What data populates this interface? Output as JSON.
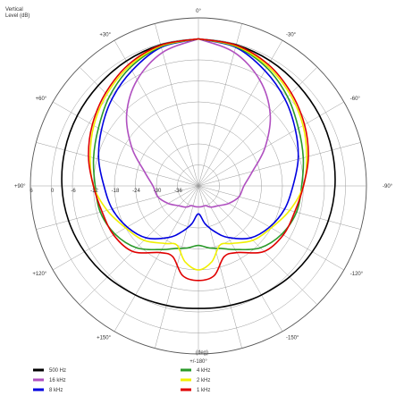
{
  "chart_data": {
    "type": "polar-line",
    "ylabel_line1": "Vertical",
    "ylabel_line2": "Level  (dB)",
    "xlabel": "(deg)",
    "r_ticks": [
      {
        "value": 6,
        "label": "6"
      },
      {
        "value": 0,
        "label": "0"
      },
      {
        "value": -6,
        "label": "-6"
      },
      {
        "value": -12,
        "label": "-12"
      },
      {
        "value": -18,
        "label": "-18"
      },
      {
        "value": -24,
        "label": "-24"
      },
      {
        "value": -30,
        "label": "-30"
      },
      {
        "value": -36,
        "label": "-36"
      }
    ],
    "r_range": [
      -42,
      6
    ],
    "angle_labels": [
      {
        "angle": 0,
        "label": "0°"
      },
      {
        "angle": -30,
        "label": "-30°"
      },
      {
        "angle": -60,
        "label": "-60°"
      },
      {
        "angle": -90,
        "label": "-90°"
      },
      {
        "angle": -120,
        "label": "-120°"
      },
      {
        "angle": -150,
        "label": "-150°"
      },
      {
        "angle": 180,
        "label": "+/-180°"
      },
      {
        "angle": 150,
        "label": "+150°"
      },
      {
        "angle": 120,
        "label": "+120°"
      },
      {
        "angle": 90,
        "label": "+90°"
      },
      {
        "angle": 60,
        "label": "+60°"
      },
      {
        "angle": 30,
        "label": "+30°"
      }
    ],
    "angles": [
      0,
      15,
      30,
      45,
      60,
      75,
      90,
      105,
      120,
      135,
      150,
      160,
      170,
      180
    ],
    "series": [
      {
        "name": "500 Hz",
        "color": "#000000",
        "values": [
          0,
          -0.3,
          -0.8,
          -1.5,
          -2,
          -2.5,
          -3,
          -3.6,
          -4.4,
          -5.2,
          -6,
          -6.5,
          -6.8,
          -7
        ]
      },
      {
        "name": "16 kHz",
        "color": "#b050c0",
        "values": [
          0,
          -2.5,
          -7,
          -13,
          -20,
          -26,
          -29,
          -30,
          -32,
          -34,
          -35,
          -36,
          -36,
          -36
        ]
      },
      {
        "name": "8 kHz",
        "color": "#0000e0",
        "values": [
          0,
          -1,
          -4,
          -7,
          -10,
          -12.5,
          -15,
          -16.5,
          -18.5,
          -21,
          -25,
          -28,
          -31,
          -34
        ]
      },
      {
        "name": "4 kHz",
        "color": "#2a9a2a",
        "values": [
          0,
          -0.8,
          -3,
          -6,
          -9,
          -11,
          -12.5,
          -13,
          -14.5,
          -17,
          -21,
          -23,
          -24,
          -25
        ]
      },
      {
        "name": "2 kHz",
        "color": "#f0f000",
        "values": [
          0,
          -0.6,
          -2.5,
          -5,
          -7.5,
          -10,
          -12,
          -15,
          -18,
          -20,
          -23,
          -24,
          -20,
          -18
        ]
      },
      {
        "name": "1 kHz",
        "color": "#e00000",
        "values": [
          0,
          -0.4,
          -2,
          -4.5,
          -7,
          -9.5,
          -12,
          -13.5,
          -14,
          -15.5,
          -20,
          -20.5,
          -16,
          -15
        ]
      }
    ]
  }
}
